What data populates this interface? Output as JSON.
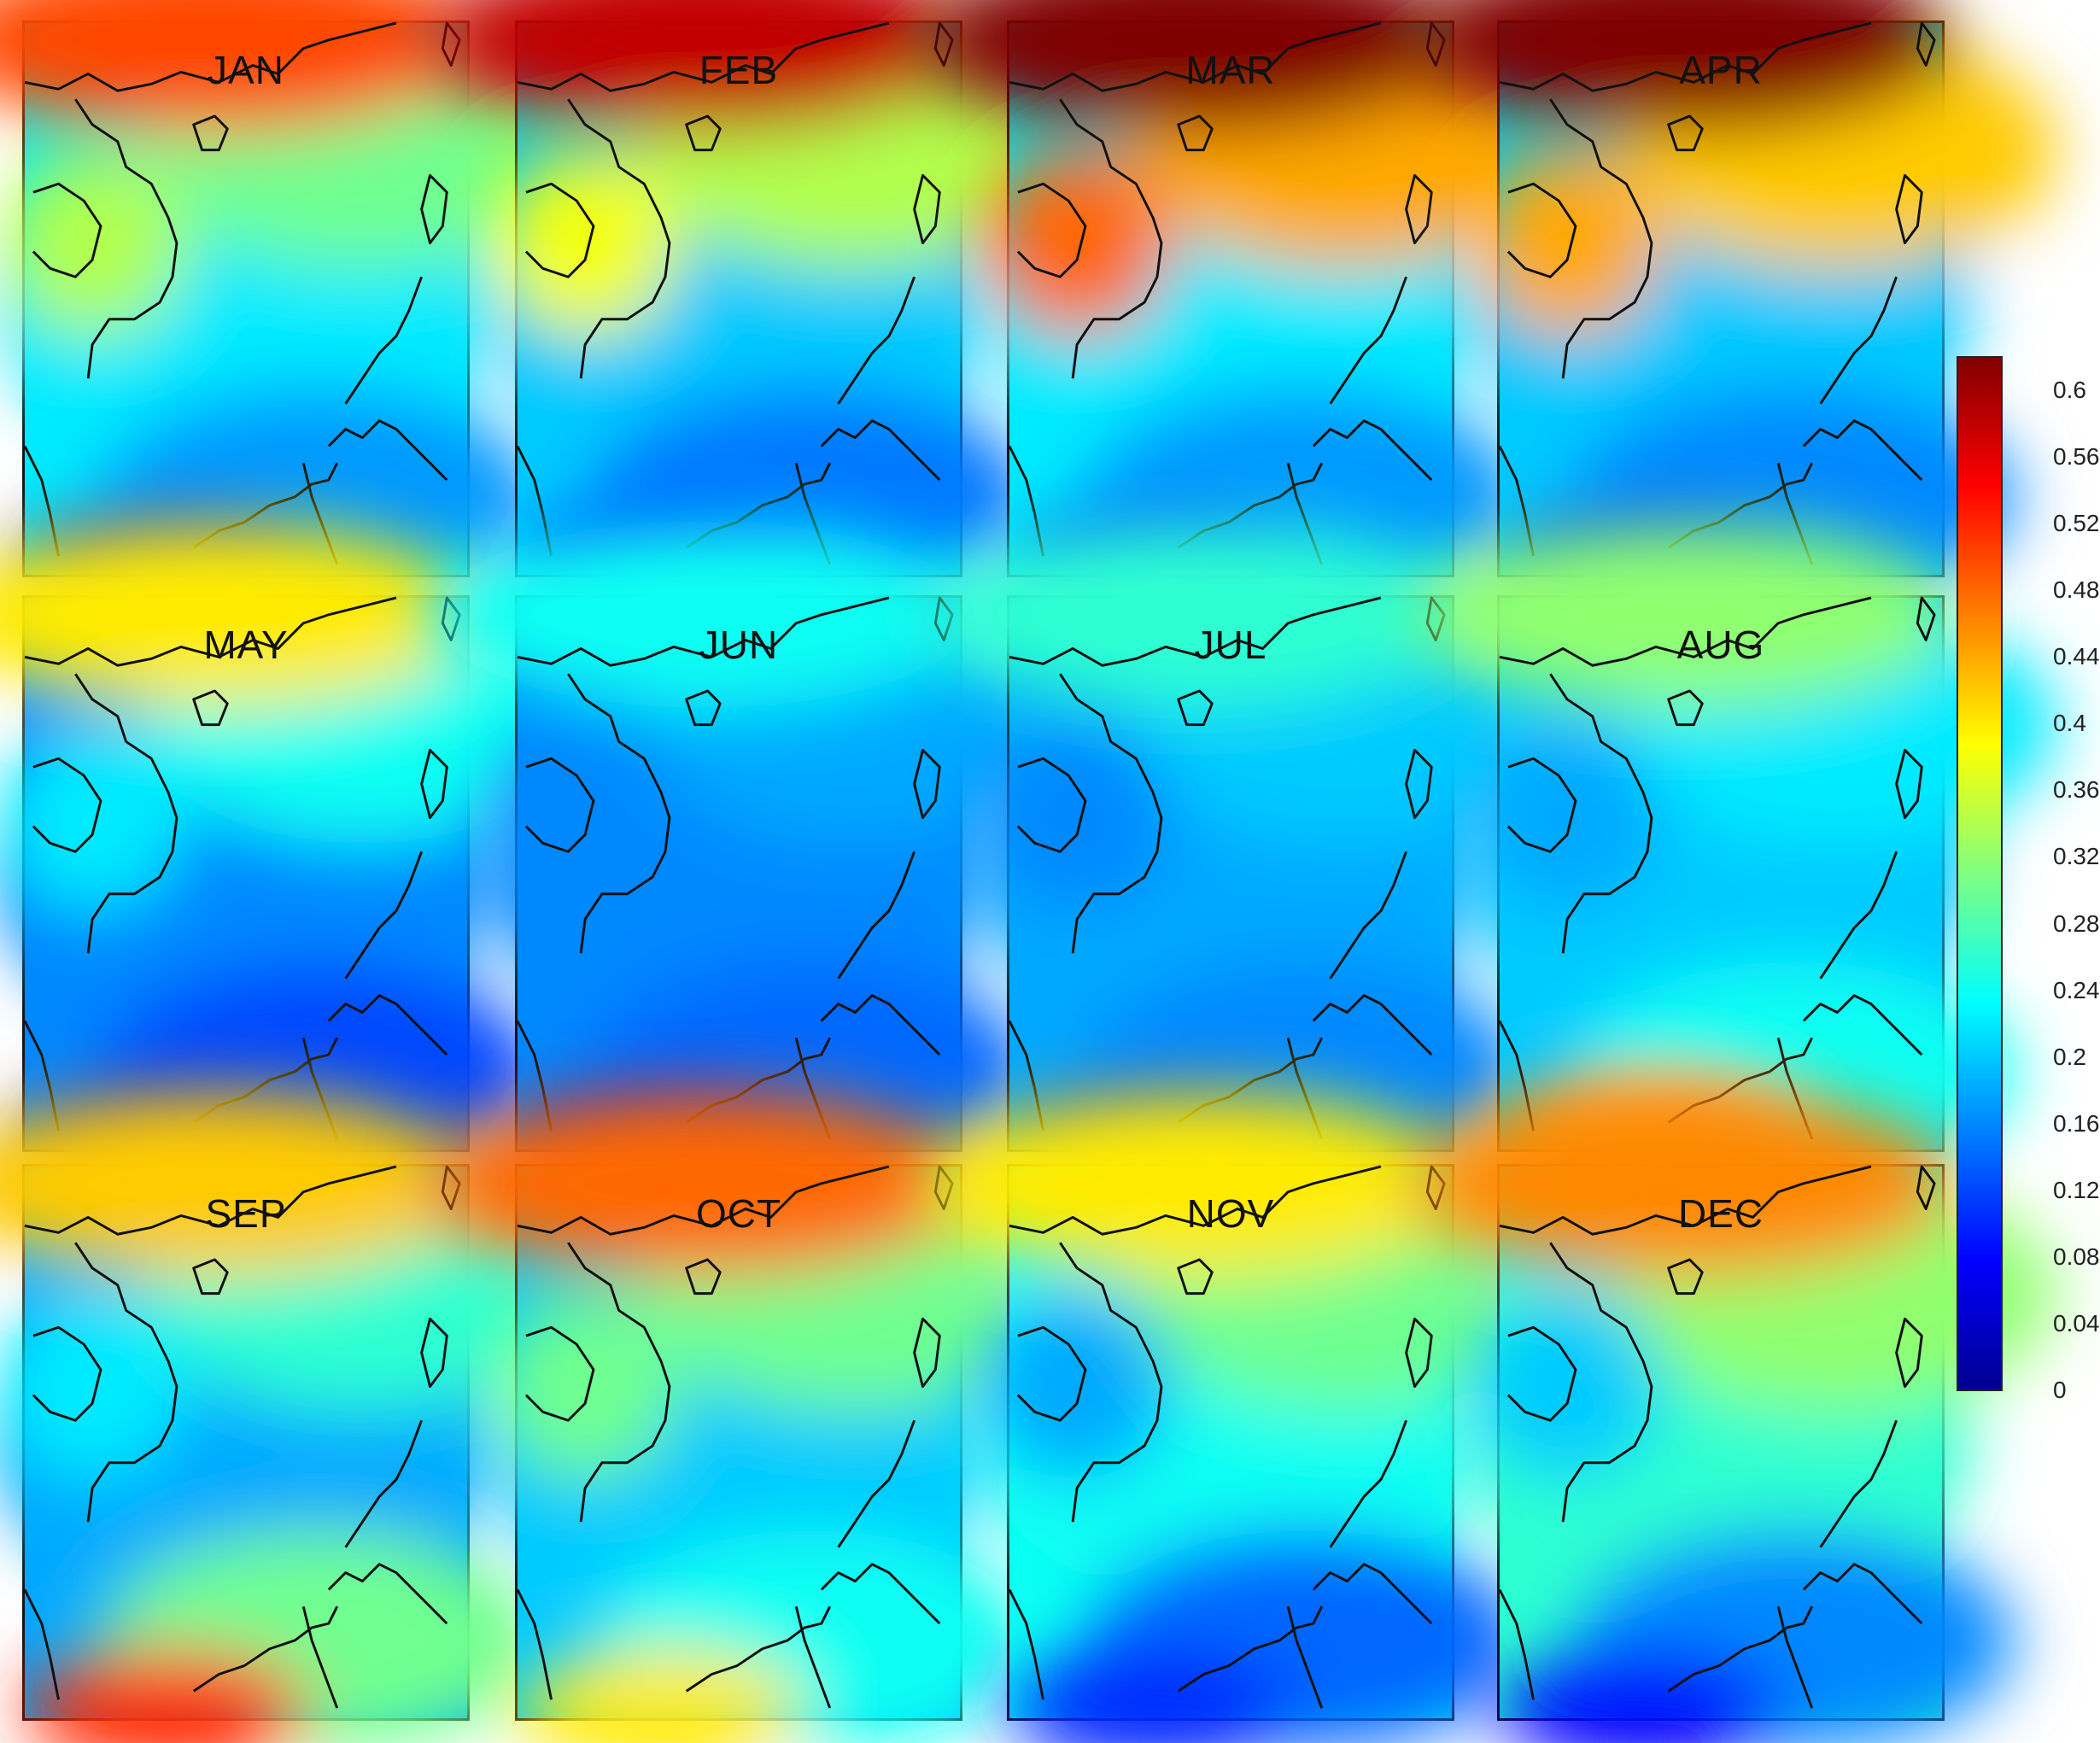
{
  "panels": [
    {
      "month": "JAN",
      "north": 0.5,
      "inland": 0.34,
      "sea_north": 0.3,
      "sea_center": 0.22,
      "south_sea": 0.17,
      "borneo": 0.1
    },
    {
      "month": "FEB",
      "north": 0.58,
      "inland": 0.38,
      "sea_north": 0.34,
      "sea_center": 0.2,
      "south_sea": 0.15,
      "borneo": 0.1
    },
    {
      "month": "MAR",
      "north": 0.62,
      "inland": 0.48,
      "sea_north": 0.44,
      "sea_center": 0.22,
      "south_sea": 0.17,
      "borneo": 0.13
    },
    {
      "month": "APR",
      "north": 0.62,
      "inland": 0.44,
      "sea_north": 0.42,
      "sea_center": 0.2,
      "south_sea": 0.16,
      "borneo": 0.12
    },
    {
      "month": "MAY",
      "north": 0.4,
      "inland": 0.22,
      "sea_north": 0.24,
      "sea_center": 0.16,
      "south_sea": 0.12,
      "borneo": 0.1
    },
    {
      "month": "JUN",
      "north": 0.24,
      "inland": 0.16,
      "sea_north": 0.18,
      "sea_center": 0.16,
      "south_sea": 0.14,
      "borneo": 0.1
    },
    {
      "month": "JUL",
      "north": 0.26,
      "inland": 0.16,
      "sea_north": 0.2,
      "sea_center": 0.18,
      "south_sea": 0.16,
      "borneo": 0.12
    },
    {
      "month": "AUG",
      "north": 0.32,
      "inland": 0.18,
      "sea_north": 0.22,
      "sea_center": 0.2,
      "south_sea": 0.24,
      "borneo": 0.44
    },
    {
      "month": "SEP",
      "north": 0.42,
      "inland": 0.22,
      "sea_north": 0.26,
      "sea_center": 0.18,
      "south_sea": 0.3,
      "borneo": 0.52
    },
    {
      "month": "OCT",
      "north": 0.48,
      "inland": 0.3,
      "sea_north": 0.3,
      "sea_center": 0.2,
      "south_sea": 0.24,
      "borneo": 0.4
    },
    {
      "month": "NOV",
      "north": 0.4,
      "inland": 0.18,
      "sea_north": 0.3,
      "sea_center": 0.24,
      "south_sea": 0.14,
      "borneo": 0.1
    },
    {
      "month": "DEC",
      "north": 0.46,
      "inland": 0.2,
      "sea_north": 0.32,
      "sea_center": 0.26,
      "south_sea": 0.16,
      "borneo": 0.08
    }
  ],
  "colorbar": {
    "min": 0,
    "max": 0.62,
    "ticks": [
      "0",
      "0.04",
      "0.08",
      "0.12",
      "0.16",
      "0.2",
      "0.24",
      "0.28",
      "0.32",
      "0.36",
      "0.4",
      "0.44",
      "0.48",
      "0.52",
      "0.56",
      "0.6"
    ],
    "colormap": [
      "#00008f",
      "#0000ff",
      "#0080ff",
      "#00ffff",
      "#80ff80",
      "#ffff00",
      "#ff8000",
      "#ff0000",
      "#800000"
    ]
  }
}
